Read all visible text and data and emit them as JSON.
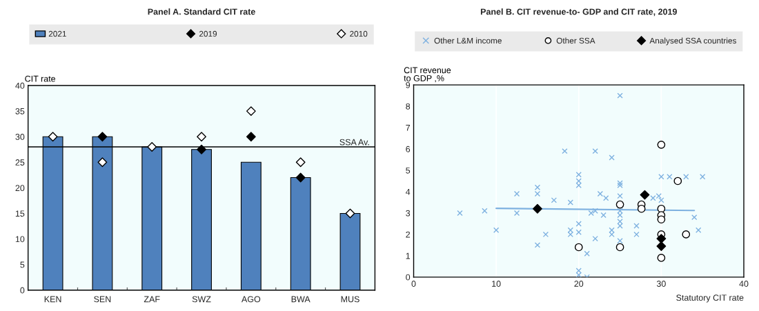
{
  "chart_data": [
    {
      "type": "bar",
      "title": "Panel A. Standard CIT rate",
      "ylabel": "CIT rate",
      "categories": [
        "KEN",
        "SEN",
        "ZAF",
        "SWZ",
        "AGO",
        "BWA",
        "MUS"
      ],
      "series": [
        {
          "name": "2021",
          "color": "#4f81bd",
          "values": [
            30,
            30,
            28,
            27.5,
            25,
            22,
            15
          ]
        },
        {
          "name": "2019",
          "type": "scatter",
          "marker": "diamond",
          "color": "#000000",
          "x": [
            "KEN",
            "SEN",
            "ZAF",
            "SWZ",
            "AGO",
            "BWA",
            "MUS"
          ],
          "values": [
            null,
            30,
            null,
            27.5,
            30,
            22,
            null
          ]
        },
        {
          "name": "2010",
          "type": "scatter",
          "marker": "diamond",
          "color": "#ffffff",
          "x": [
            "KEN",
            "SEN",
            "ZAF",
            "SWZ",
            "AGO",
            "BWA",
            "MUS"
          ],
          "values": [
            30,
            25,
            28,
            30,
            35,
            25,
            15
          ]
        }
      ],
      "ylim": [
        0,
        40
      ],
      "yticks": [
        0,
        5,
        10,
        15,
        20,
        25,
        30,
        35,
        40
      ],
      "ref_lines": [
        {
          "axis": "y",
          "value": 28,
          "label": "SSA Av.",
          "color": "#000000"
        }
      ],
      "legend": "top",
      "grid": false
    },
    {
      "type": "scatter",
      "title": "Panel B. CIT revenue-to- GDP and CIT rate, 2019",
      "xlabel": "Statutory CIT rate",
      "ylabel": "CIT revenue\nto GDP ,%",
      "series": [
        {
          "name": "Other L&M income",
          "marker": "cross",
          "color": "#7eb1e0",
          "x": [
            5.6,
            8.6,
            10,
            12.5,
            12.5,
            15,
            15,
            15,
            16,
            17,
            18.3,
            19,
            19,
            19,
            20,
            20,
            20,
            20,
            20,
            20,
            20,
            25,
            22,
            24,
            22.6,
            23.3,
            25,
            25,
            25,
            21.5,
            22,
            23,
            25,
            25,
            25,
            25,
            24,
            24,
            22,
            21,
            21,
            25,
            27,
            27,
            29,
            29.7,
            30,
            30,
            31,
            33,
            35,
            34,
            34.5
          ],
          "values": [
            3.0,
            3.1,
            2.2,
            3.9,
            3.0,
            4.2,
            3.9,
            1.5,
            2.0,
            3.6,
            5.9,
            3.5,
            2.2,
            2.0,
            4.8,
            4.5,
            4.3,
            2.5,
            2.1,
            0.3,
            0.1,
            8.5,
            5.9,
            5.6,
            3.9,
            3.7,
            4.4,
            4.3,
            3.8,
            3.0,
            3.1,
            2.9,
            3.1,
            2.9,
            2.6,
            2.4,
            2.2,
            2.0,
            1.8,
            1.1,
            0.0,
            1.7,
            2.4,
            2.0,
            3.7,
            3.8,
            3.6,
            4.7,
            4.7,
            4.7,
            4.7,
            2.8,
            2.2
          ]
        },
        {
          "name": "Other SSA",
          "marker": "circle",
          "color": "#ffffff",
          "x": [
            30,
            32,
            25,
            27.6,
            27.6,
            30,
            30,
            30,
            30,
            33,
            20,
            25,
            30
          ],
          "values": [
            6.2,
            4.5,
            3.4,
            3.4,
            3.2,
            3.2,
            2.9,
            2.7,
            2.0,
            2.0,
            1.4,
            1.4,
            0.9
          ]
        },
        {
          "name": "Analysed SSA countries",
          "marker": "diamond",
          "color": "#000000",
          "x": [
            15,
            28,
            30,
            30
          ],
          "values": [
            3.2,
            3.85,
            1.8,
            1.45
          ]
        },
        {
          "type": "line",
          "color": "#7eb1e0",
          "x": [
            10,
            34
          ],
          "values": [
            3.22,
            3.12
          ]
        }
      ],
      "xlim": [
        0,
        40
      ],
      "xticks": [
        0,
        10,
        20,
        30,
        40
      ],
      "ylim": [
        0,
        9
      ],
      "yticks": [
        0,
        1,
        2,
        3,
        4,
        5,
        6,
        7,
        8,
        9
      ],
      "legend": "top",
      "grid": "x"
    }
  ]
}
